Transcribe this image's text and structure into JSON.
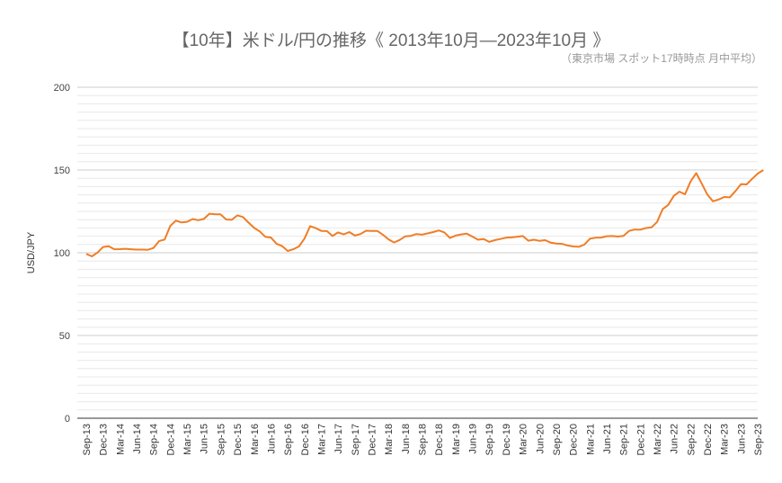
{
  "title": "【10年】米ドル/円の推移《 2013年10月―2023年10月 》",
  "subtitle": "（東京市場 スポット17時時点 月中平均）",
  "colors": {
    "line": "#f07d26",
    "grid_major": "#cccccc",
    "grid_minor": "#e8e8e8",
    "axis": "#333333"
  },
  "chart_data": {
    "type": "line",
    "title": "【10年】米ドル/円の推移《 2013年10月―2023年10月 》",
    "subtitle": "（東京市場 スポット17時時点 月中平均）",
    "xlabel": "",
    "ylabel": "USD/JPY",
    "ylim": [
      0,
      200
    ],
    "yticks": [
      0,
      50,
      100,
      150,
      200
    ],
    "minor_grid_step": 5,
    "grid": true,
    "legend": null,
    "x_tick_labels": [
      "Sep-13",
      "Dec-13",
      "Mar-14",
      "Jun-14",
      "Sep-14",
      "Dec-14",
      "Mar-15",
      "Jun-15",
      "Sep-15",
      "Dec-15",
      "Mar-16",
      "Jun-16",
      "Sep-16",
      "Dec-16",
      "Mar-17",
      "Jun-17",
      "Sep-17",
      "Dec-17",
      "Mar-18",
      "Jun-18",
      "Sep-18",
      "Dec-18",
      "Mar-19",
      "Jun-19",
      "Sep-19",
      "Dec-19",
      "Mar-20",
      "Jun-20",
      "Sep-20",
      "Dec-20",
      "Mar-21",
      "Jun-21",
      "Sep-21",
      "Dec-21",
      "Mar-22",
      "Jun-22",
      "Sep-22",
      "Dec-22",
      "Mar-23",
      "Jun-23",
      "Sep-23"
    ],
    "series": [
      {
        "name": "USD/JPY",
        "x_start": "Oct-13",
        "x_end": "Oct-23",
        "frequency": "monthly",
        "values": [
          97.8,
          100.1,
          103.5,
          103.9,
          102.1,
          102.2,
          102.4,
          102.1,
          101.9,
          101.9,
          101.8,
          102.9,
          107.0,
          108.0,
          116.2,
          119.4,
          118.3,
          118.7,
          120.4,
          119.7,
          120.4,
          123.6,
          123.2,
          123.2,
          120.1,
          119.9,
          122.6,
          121.6,
          118.2,
          115.0,
          112.9,
          109.6,
          109.2,
          105.4,
          104.0,
          101.1,
          102.1,
          103.8,
          108.6,
          116.1,
          114.9,
          113.2,
          113.1,
          110.1,
          112.3,
          111.1,
          112.5,
          110.4,
          111.3,
          113.3,
          113.2,
          113.2,
          110.9,
          108.1,
          106.2,
          107.7,
          109.9,
          110.2,
          111.3,
          110.9,
          111.7,
          112.5,
          113.5,
          112.3,
          108.9,
          110.4,
          111.1,
          111.5,
          109.8,
          107.9,
          108.3,
          106.6,
          107.6,
          108.3,
          109.1,
          109.3,
          109.6,
          110.1,
          107.3,
          107.9,
          107.2,
          107.6,
          106.1,
          105.6,
          105.4,
          104.4,
          103.8,
          103.6,
          104.9,
          108.5,
          109.1,
          109.2,
          110.0,
          110.1,
          109.8,
          110.2,
          113.2,
          114.0,
          113.9,
          114.9,
          115.3,
          118.6,
          126.3,
          128.9,
          134.4,
          136.9,
          135.3,
          143.1,
          148.1,
          141.7,
          135.1,
          131.1,
          132.2,
          133.7,
          133.5,
          137.2,
          141.4,
          141.3,
          144.7,
          147.8,
          150.0
        ]
      }
    ]
  }
}
